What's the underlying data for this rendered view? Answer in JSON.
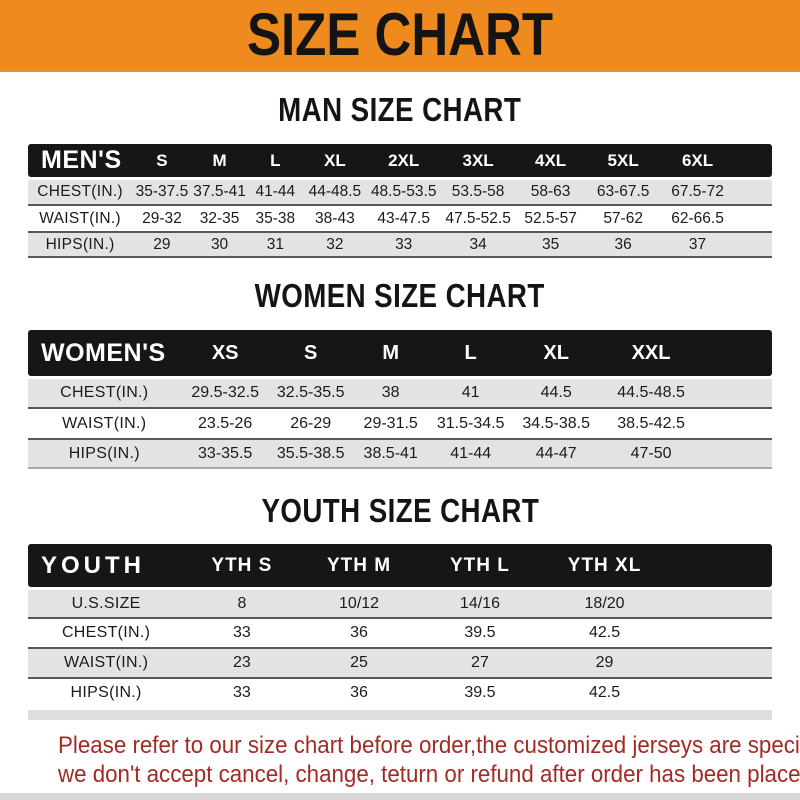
{
  "header": {
    "title": "SIZE CHART"
  },
  "colors": {
    "accent_orange": "#EE8A1E",
    "header_bar_black": "#161616",
    "row_stripe_gray": "#E3E3E3",
    "disclaimer_red": "#A32B25"
  },
  "chart_data": [
    {
      "type": "table",
      "title": "MAN SIZE CHART",
      "corner_label": "MEN'S",
      "columns": [
        "S",
        "M",
        "L",
        "XL",
        "2XL",
        "3XL",
        "4XL",
        "5XL",
        "6XL"
      ],
      "rows": [
        {
          "label": "CHEST(IN.)",
          "values": [
            "35-37.5",
            "37.5-41",
            "41-44",
            "44-48.5",
            "48.5-53.5",
            "53.5-58",
            "58-63",
            "63-67.5",
            "67.5-72"
          ]
        },
        {
          "label": "WAIST(IN.)",
          "values": [
            "29-32",
            "32-35",
            "35-38",
            "38-43",
            "43-47.5",
            "47.5-52.5",
            "52.5-57",
            "57-62",
            "62-66.5"
          ]
        },
        {
          "label": "HIPS(IN.)",
          "values": [
            "29",
            "30",
            "31",
            "32",
            "33",
            "34",
            "35",
            "36",
            "37"
          ]
        }
      ]
    },
    {
      "type": "table",
      "title": "WOMEN SIZE CHART",
      "corner_label": "WOMEN'S",
      "columns": [
        "XS",
        "S",
        "M",
        "L",
        "XL",
        "XXL"
      ],
      "rows": [
        {
          "label": "CHEST(IN.)",
          "values": [
            "29.5-32.5",
            "32.5-35.5",
            "38",
            "41",
            "44.5",
            "44.5-48.5"
          ]
        },
        {
          "label": "WAIST(IN.)",
          "values": [
            "23.5-26",
            "26-29",
            "29-31.5",
            "31.5-34.5",
            "34.5-38.5",
            "38.5-42.5"
          ]
        },
        {
          "label": "HIPS(IN.)",
          "values": [
            "33-35.5",
            "35.5-38.5",
            "38.5-41",
            "41-44",
            "44-47",
            "47-50"
          ]
        }
      ]
    },
    {
      "type": "table",
      "title": "YOUTH SIZE CHART",
      "corner_label": "YOUTH",
      "columns": [
        "YTH S",
        "YTH M",
        "YTH L",
        "YTH XL"
      ],
      "rows": [
        {
          "label": "U.S.SIZE",
          "values": [
            "8",
            "10/12",
            "14/16",
            "18/20"
          ]
        },
        {
          "label": "CHEST(IN.)",
          "values": [
            "33",
            "36",
            "39.5",
            "42.5"
          ]
        },
        {
          "label": "WAIST(IN.)",
          "values": [
            "23",
            "25",
            "27",
            "29"
          ]
        },
        {
          "label": "HIPS(IN.)",
          "values": [
            "33",
            "36",
            "39.5",
            "42.5"
          ]
        }
      ]
    }
  ],
  "footer": {
    "line1": "Please refer to our size chart before order,the customized jerseys are special products,",
    "line2": "we don't accept cancel, change, teturn or refund after order has been placed!"
  }
}
